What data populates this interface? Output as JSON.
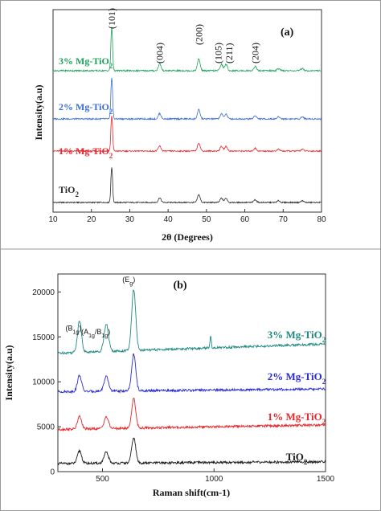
{
  "chart_data": [
    {
      "type": "line",
      "panel_label": "(a)",
      "xlabel": "2θ (Degrees)",
      "ylabel": "Intensity(a.u)",
      "xlim": [
        10,
        80
      ],
      "xticks": [
        "10",
        "20",
        "30",
        "40",
        "50",
        "60",
        "70",
        "80"
      ],
      "yticks_visible": false,
      "peak_labels": [
        {
          "text": "(101)",
          "x": 25.3
        },
        {
          "text": "(004)",
          "x": 37.8
        },
        {
          "text": "(200)",
          "x": 48.0
        },
        {
          "text": "(105)",
          "x": 53.9
        },
        {
          "text": "(211)",
          "x": 55.1
        },
        {
          "text": "(204)",
          "x": 62.7
        }
      ],
      "series": [
        {
          "name": "TiO",
          "sub": "2",
          "color": "#2b2b2b",
          "offset": 0,
          "peaks": [
            [
              25.3,
              1.0
            ],
            [
              37.8,
              0.13
            ],
            [
              48.0,
              0.22
            ],
            [
              53.9,
              0.12
            ],
            [
              55.1,
              0.12
            ],
            [
              62.7,
              0.08
            ],
            [
              68.8,
              0.05
            ],
            [
              75.0,
              0.05
            ]
          ]
        },
        {
          "name": "1% Mg-TiO",
          "sub": "2",
          "color": "#e8262b",
          "offset": 1,
          "peaks": [
            [
              25.3,
              1.0
            ],
            [
              37.8,
              0.14
            ],
            [
              48.0,
              0.23
            ],
            [
              53.9,
              0.13
            ],
            [
              55.1,
              0.13
            ],
            [
              62.7,
              0.08
            ],
            [
              68.8,
              0.05
            ],
            [
              75.0,
              0.05
            ]
          ]
        },
        {
          "name": "2% Mg-TiO",
          "sub": "2",
          "color": "#3a6fd8",
          "offset": 2,
          "peaks": [
            [
              25.3,
              1.0
            ],
            [
              37.8,
              0.13
            ],
            [
              48.0,
              0.22
            ],
            [
              53.9,
              0.12
            ],
            [
              55.1,
              0.12
            ],
            [
              62.7,
              0.08
            ],
            [
              68.8,
              0.05
            ],
            [
              75.0,
              0.05
            ]
          ]
        },
        {
          "name": "3% Mg-TiO",
          "sub": "2",
          "color": "#1fa35a",
          "offset": 3,
          "peaks": [
            [
              25.3,
              1.0
            ],
            [
              37.8,
              0.16
            ],
            [
              48.0,
              0.27
            ],
            [
              53.9,
              0.15
            ],
            [
              55.1,
              0.15
            ],
            [
              62.7,
              0.1
            ],
            [
              68.8,
              0.05
            ],
            [
              75.0,
              0.05
            ]
          ]
        }
      ]
    },
    {
      "type": "line",
      "panel_label": "(b)",
      "xlabel": "Raman shift(cm-1)",
      "ylabel": "Intensity(a.u)",
      "xlim": [
        300,
        1500
      ],
      "ylim": [
        0,
        22000
      ],
      "xticks": [
        500,
        1000,
        1500
      ],
      "yticks": [
        0,
        5000,
        10000,
        15000,
        20000
      ],
      "annotations": [
        {
          "text": "(E",
          "sub": "g",
          "tail": ")",
          "x": 618,
          "y": 21100
        },
        {
          "text": "(B",
          "sub": "1g",
          "tail": ")",
          "x": 370,
          "y": 15700
        },
        {
          "text": "(A",
          "sub": "1g",
          "mid": "/B",
          "sub2": "1g",
          "tail": ")",
          "x": 470,
          "y": 15300
        }
      ],
      "series": [
        {
          "name": "TiO",
          "sub": "2",
          "color": "#1a1a1a",
          "base": 900,
          "drift": 200,
          "peaks": [
            [
              397,
              1400
            ],
            [
              517,
              1200
            ],
            [
              640,
              2800
            ]
          ],
          "spike": null
        },
        {
          "name": "1% Mg-TiO",
          "sub": "2",
          "color": "#e8262b",
          "base": 4700,
          "drift": 500,
          "peaks": [
            [
              397,
              1400
            ],
            [
              517,
              1300
            ],
            [
              640,
              3300
            ]
          ],
          "spike": null
        },
        {
          "name": "2% Mg-TiO",
          "sub": "2",
          "color": "#2a2ad6",
          "base": 8900,
          "drift": 300,
          "peaks": [
            [
              397,
              1800
            ],
            [
              517,
              1600
            ],
            [
              640,
              4100
            ]
          ],
          "spike": null
        },
        {
          "name": "3% Mg-TiO",
          "sub": "2",
          "color": "#1f8a80",
          "base": 13200,
          "drift": 1000,
          "peaks": [
            [
              397,
              3500
            ],
            [
              517,
              3000
            ],
            [
              640,
              6800
            ]
          ],
          "spike": [
            985,
            1400
          ]
        }
      ]
    }
  ]
}
